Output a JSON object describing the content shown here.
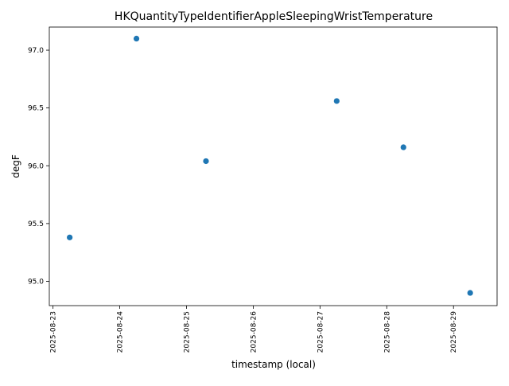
{
  "chart_data": {
    "type": "scatter",
    "title": "HKQuantityTypeIdentifierAppleSleepingWristTemperature",
    "xlabel": "timestamp (local)",
    "ylabel": "degF",
    "x_axis_type": "date",
    "xlim": [
      "2025-08-22T22:40",
      "2025-08-29T15:40"
    ],
    "ylim": [
      94.79,
      97.2
    ],
    "x_ticks": [
      "2025-08-23",
      "2025-08-24",
      "2025-08-25",
      "2025-08-26",
      "2025-08-27",
      "2025-08-28",
      "2025-08-29"
    ],
    "y_ticks": [
      "95.0",
      "95.5",
      "96.0",
      "96.5",
      "97.0"
    ],
    "grid": false,
    "legend": "none",
    "color": "#1f77b4",
    "points": [
      {
        "x": "2025-08-23T06:00",
        "y": 95.38
      },
      {
        "x": "2025-08-24T06:00",
        "y": 97.1
      },
      {
        "x": "2025-08-25T07:00",
        "y": 96.04
      },
      {
        "x": "2025-08-27T06:00",
        "y": 96.56
      },
      {
        "x": "2025-08-28T06:00",
        "y": 96.16
      },
      {
        "x": "2025-08-29T06:00",
        "y": 94.9
      }
    ]
  }
}
